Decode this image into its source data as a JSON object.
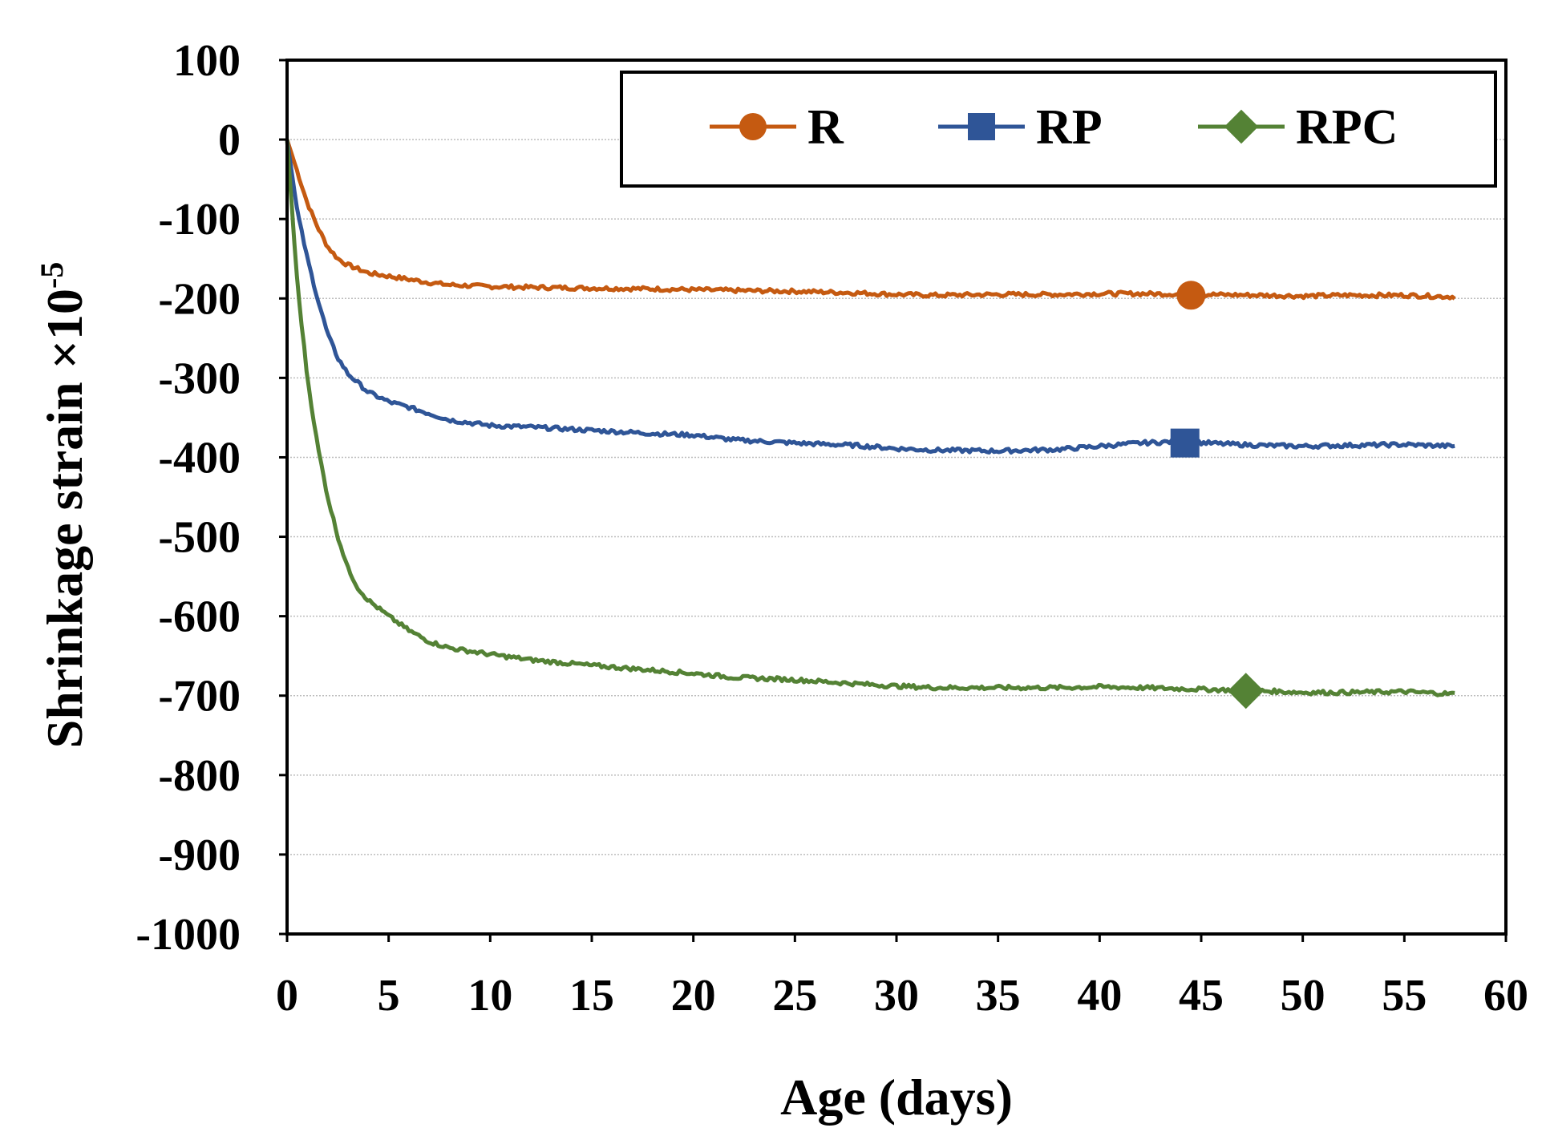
{
  "chart_data": {
    "type": "line",
    "title": "",
    "xlabel": "Age (days)",
    "ylabel_main": "Shrinkage strain ×10",
    "ylabel_exp": "-5",
    "xlim": [
      0,
      60
    ],
    "ylim": [
      -1000,
      100
    ],
    "xticks": [
      0,
      5,
      10,
      15,
      20,
      25,
      30,
      35,
      40,
      45,
      50,
      55,
      60
    ],
    "yticks": [
      100,
      0,
      -100,
      -200,
      -300,
      -400,
      -500,
      -600,
      -700,
      -800,
      -900,
      -1000
    ],
    "grid": true,
    "legend_position": "top-right",
    "series": [
      {
        "name": "R",
        "color": "#c55a11",
        "marker": "circle",
        "marker_at": [
          44.5,
          -196
        ],
        "x": [
          0,
          0.5,
          1,
          1.5,
          2,
          2.5,
          3,
          4,
          5,
          6,
          7,
          8,
          10,
          12,
          15,
          18,
          20,
          22,
          25,
          28,
          30,
          32,
          35,
          38,
          40,
          42,
          45,
          48,
          50,
          52,
          55,
          57.5
        ],
        "y": [
          0,
          -40,
          -80,
          -110,
          -135,
          -150,
          -158,
          -168,
          -172,
          -176,
          -180,
          -183,
          -185,
          -186,
          -187,
          -188,
          -189,
          -190,
          -191,
          -193,
          -195,
          -196,
          -195,
          -195,
          -194,
          -194,
          -195,
          -196,
          -197,
          -196,
          -196,
          -198
        ]
      },
      {
        "name": "RP",
        "color": "#2f5597",
        "marker": "square",
        "marker_at": [
          44.2,
          -382
        ],
        "x": [
          0,
          0.5,
          1,
          1.5,
          2,
          2.5,
          3,
          4,
          5,
          6,
          7,
          8,
          10,
          12,
          15,
          18,
          20,
          22,
          25,
          28,
          30,
          32,
          35,
          38,
          40,
          42,
          44,
          46,
          48,
          50,
          52,
          55,
          57.5
        ],
        "y": [
          0,
          -90,
          -150,
          -200,
          -245,
          -275,
          -295,
          -318,
          -330,
          -337,
          -345,
          -353,
          -360,
          -362,
          -366,
          -370,
          -372,
          -378,
          -382,
          -385,
          -389,
          -391,
          -392,
          -390,
          -386,
          -382,
          -380,
          -383,
          -385,
          -386,
          -385,
          -384,
          -386
        ]
      },
      {
        "name": "RPC",
        "color": "#548235",
        "marker": "diamond",
        "marker_at": [
          47.2,
          -694
        ],
        "x": [
          0,
          0.5,
          1,
          1.5,
          2,
          2.5,
          3,
          3.5,
          4,
          5,
          6,
          7,
          8,
          10,
          12,
          15,
          18,
          20,
          22,
          25,
          28,
          30,
          32,
          35,
          38,
          40,
          42,
          45,
          48,
          50,
          52,
          55,
          57.5
        ],
        "y": [
          0,
          -180,
          -300,
          -385,
          -450,
          -500,
          -540,
          -565,
          -580,
          -600,
          -618,
          -632,
          -640,
          -648,
          -655,
          -662,
          -668,
          -672,
          -677,
          -680,
          -685,
          -688,
          -690,
          -690,
          -690,
          -689,
          -690,
          -692,
          -694,
          -696,
          -696,
          -695,
          -698
        ]
      }
    ]
  }
}
